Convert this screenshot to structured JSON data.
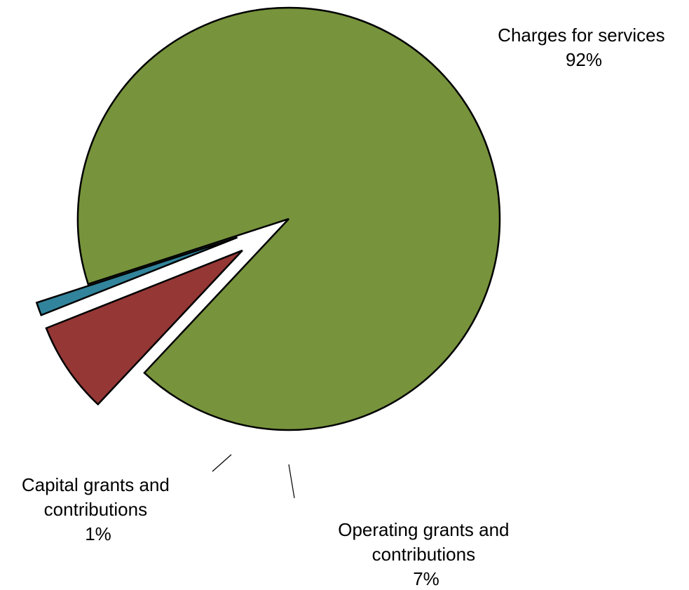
{
  "chart_data": {
    "type": "pie",
    "slices": [
      {
        "label_lines": [
          "Charges for services"
        ],
        "percent_label": "92%",
        "value": 92,
        "color": "#77933C"
      },
      {
        "label_lines": [
          "Operating grants and",
          "contributions"
        ],
        "percent_label": "7%",
        "value": 7,
        "color": "#953735"
      },
      {
        "label_lines": [
          "Capital grants and",
          "contributions"
        ],
        "percent_label": "1%",
        "value": 1,
        "color": "#31849B"
      }
    ],
    "legend": "none",
    "exploded": true
  }
}
